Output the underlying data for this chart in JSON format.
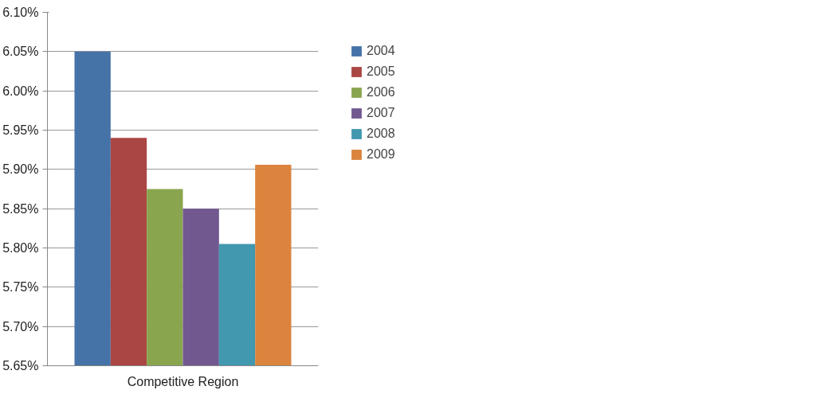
{
  "chart_data": {
    "type": "bar",
    "categories": [
      "Competitive Region"
    ],
    "series": [
      {
        "name": "2004",
        "color": "#4572a7",
        "values": [
          6.05
        ]
      },
      {
        "name": "2005",
        "color": "#aa4643",
        "values": [
          5.94
        ]
      },
      {
        "name": "2006",
        "color": "#89a54e",
        "values": [
          5.875
        ]
      },
      {
        "name": "2007",
        "color": "#71588f",
        "values": [
          5.85
        ]
      },
      {
        "name": "2008",
        "color": "#4198af",
        "values": [
          5.805
        ]
      },
      {
        "name": "2009",
        "color": "#db843d",
        "values": [
          5.906
        ]
      }
    ],
    "ylim": [
      5.65,
      6.1
    ],
    "yticks": [
      {
        "value": 5.65,
        "label": "5.65%"
      },
      {
        "value": 5.7,
        "label": "5.70%"
      },
      {
        "value": 5.75,
        "label": "5.75%"
      },
      {
        "value": 5.8,
        "label": "5.80%"
      },
      {
        "value": 5.85,
        "label": "5.85%"
      },
      {
        "value": 5.9,
        "label": "5.90%"
      },
      {
        "value": 5.95,
        "label": "5.95%"
      },
      {
        "value": 6.0,
        "label": "6.00%"
      },
      {
        "value": 6.05,
        "label": "6.05%"
      },
      {
        "value": 6.1,
        "label": "6.10%"
      }
    ],
    "grid": "y",
    "legend": "right"
  }
}
